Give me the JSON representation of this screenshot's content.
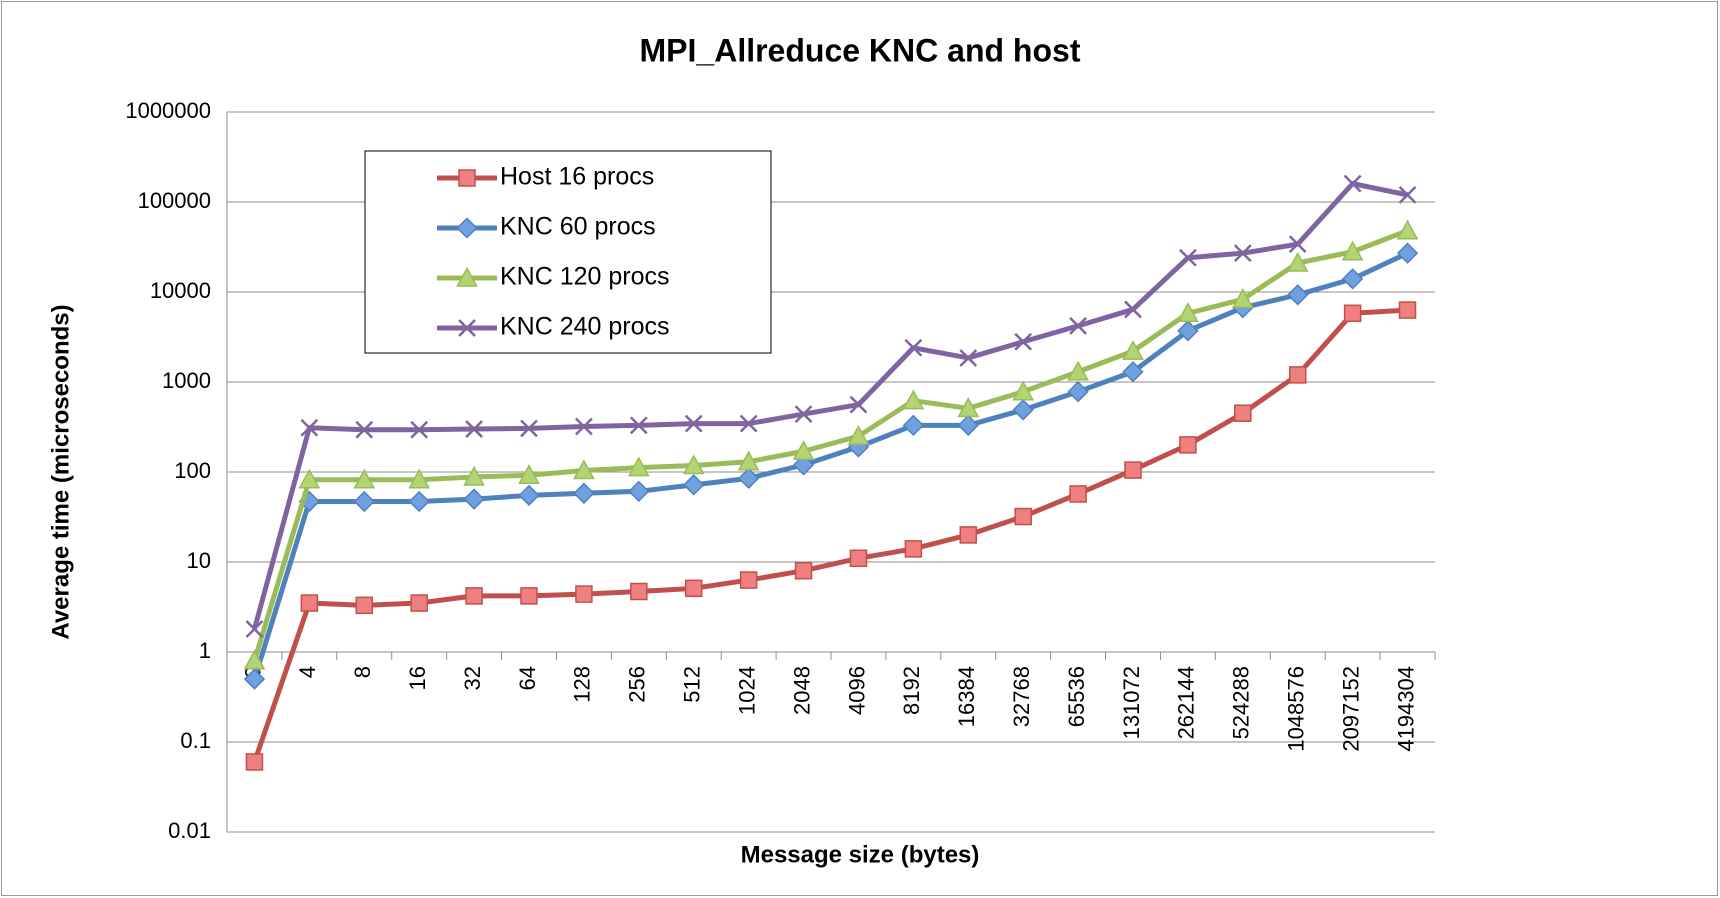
{
  "chart_data": {
    "type": "line",
    "title": "MPI_Allreduce KNC and host",
    "x_label": "Message size (bytes)",
    "y_label": "Average time (microseconds)",
    "categories": [
      "0",
      "4",
      "8",
      "16",
      "32",
      "64",
      "128",
      "256",
      "512",
      "1024",
      "2048",
      "4096",
      "8192",
      "16384",
      "32768",
      "65536",
      "131072",
      "262144",
      "524288",
      "1048576",
      "2097152",
      "4194304"
    ],
    "log_y": true,
    "ylim": [
      0.01,
      1000000
    ],
    "yticks": [
      0.01,
      0.1,
      1,
      10,
      100,
      1000,
      10000,
      100000,
      1000000
    ],
    "grid": true,
    "legend": "upper left",
    "series": [
      {
        "name": "Host 16 procs",
        "color": "#c0504d",
        "marker": "square",
        "values": [
          0.06,
          3.5,
          3.3,
          3.5,
          4.2,
          4.2,
          4.4,
          4.7,
          5.1,
          6.3,
          8,
          11,
          14,
          20,
          32,
          57,
          105,
          200,
          450,
          1200,
          5800,
          6300
        ]
      },
      {
        "name": "KNC 60 procs",
        "color": "#4f81bd",
        "marker": "diamond",
        "values": [
          0.5,
          47,
          47,
          47,
          50,
          55,
          58,
          61,
          72,
          85,
          120,
          190,
          330,
          330,
          490,
          780,
          1300,
          3700,
          6700,
          9300,
          14000,
          27000
        ]
      },
      {
        "name": "KNC 120 procs",
        "color": "#9bbb59",
        "marker": "triangle",
        "values": [
          0.8,
          82,
          82,
          82,
          88,
          92,
          104,
          112,
          118,
          130,
          170,
          250,
          620,
          510,
          780,
          1300,
          2200,
          5800,
          8300,
          21000,
          28000,
          48000
        ]
      },
      {
        "name": "KNC 240 procs",
        "color": "#8064a2",
        "marker": "x",
        "values": [
          1.8,
          310,
          295,
          295,
          300,
          305,
          320,
          330,
          345,
          345,
          440,
          560,
          2400,
          1850,
          2800,
          4200,
          6400,
          24000,
          27000,
          34000,
          160000,
          120000
        ]
      }
    ]
  }
}
